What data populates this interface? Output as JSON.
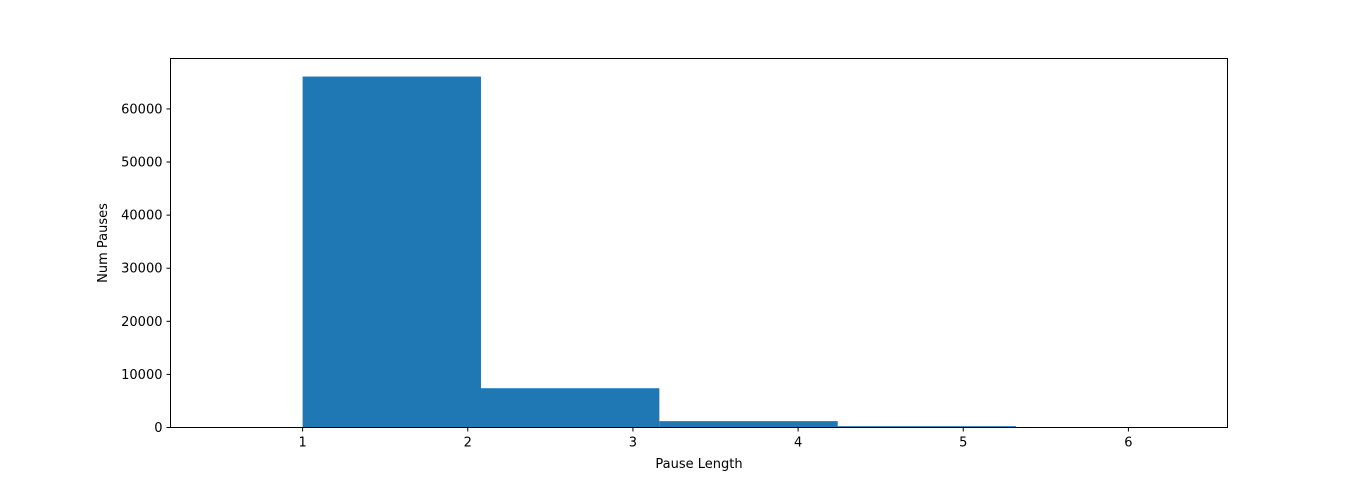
{
  "chart_data": {
    "type": "bar",
    "bins": [
      {
        "start": 1.0,
        "end": 2.08,
        "value": 66100
      },
      {
        "start": 2.08,
        "end": 3.16,
        "value": 7400
      },
      {
        "start": 3.16,
        "end": 4.24,
        "value": 1200
      },
      {
        "start": 4.24,
        "end": 5.32,
        "value": 250
      },
      {
        "start": 5.32,
        "end": 6.4,
        "value": 40
      }
    ],
    "xlabel": "Pause Length",
    "ylabel": "Num Pauses",
    "xlim": [
      0.2,
      6.6
    ],
    "ylim": [
      0,
      69500
    ],
    "xticks": [
      "1",
      "2",
      "3",
      "4",
      "5",
      "6"
    ],
    "yticks": [
      "0",
      "10000",
      "20000",
      "30000",
      "40000",
      "50000",
      "60000"
    ],
    "bar_color": "#1f77b4",
    "grid": false,
    "legend": "none"
  }
}
